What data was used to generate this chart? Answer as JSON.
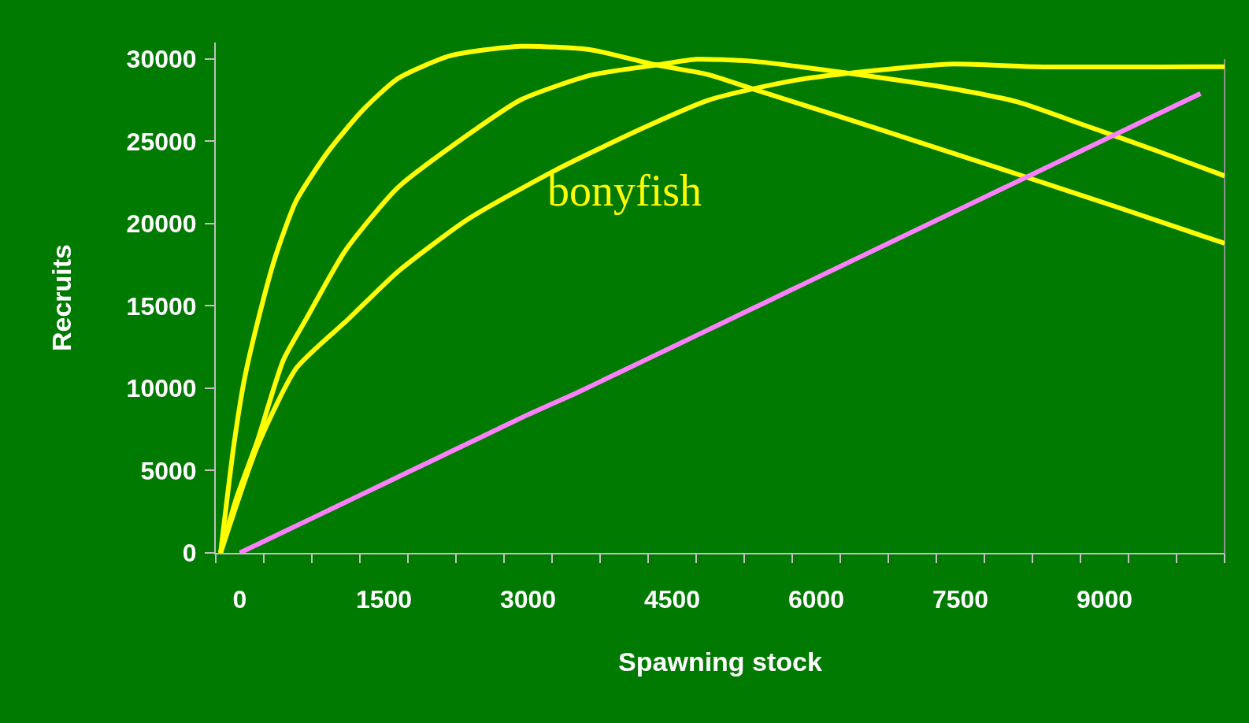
{
  "chart_data": {
    "type": "line",
    "xlabel": "Spawning stock",
    "ylabel": "Recruits",
    "annotations": [
      "bonyfish"
    ],
    "xlim": [
      -250,
      10250
    ],
    "xticks": [
      0,
      1500,
      3000,
      4500,
      6000,
      7500,
      9000,
      {
        "value": -250,
        "label": null
      },
      {
        "value": 250,
        "label": null
      },
      {
        "value": 750,
        "label": null
      },
      {
        "value": 1250,
        "label": null
      },
      {
        "value": 1750,
        "label": null
      },
      {
        "value": 2250,
        "label": null
      },
      {
        "value": 2750,
        "label": null
      },
      {
        "value": 3250,
        "label": null
      },
      {
        "value": 3750,
        "label": null
      },
      {
        "value": 4250,
        "label": null
      },
      {
        "value": 4750,
        "label": null
      },
      {
        "value": 5250,
        "label": null
      },
      {
        "value": 5750,
        "label": null
      },
      {
        "value": 6250,
        "label": null
      },
      {
        "value": 6750,
        "label": null
      },
      {
        "value": 7250,
        "label": null
      },
      {
        "value": 7750,
        "label": null
      },
      {
        "value": 8250,
        "label": null
      },
      {
        "value": 8750,
        "label": null
      },
      {
        "value": 9250,
        "label": null
      },
      {
        "value": 9750,
        "label": null
      },
      {
        "value": 10250,
        "label": null
      }
    ],
    "ylim": [
      0,
      31000
    ],
    "yticks": [
      0,
      5000,
      10000,
      15000,
      20000,
      25000,
      30000
    ],
    "grid": false,
    "marker": "none",
    "line_style": "solid",
    "series": [
      {
        "color": "#ffff00",
        "x": [
          -200,
          -64,
          45,
          182,
          367,
          585,
          912,
          1281,
          1645,
          2193,
          2924,
          3654,
          4308,
          4873,
          5331,
          6663,
          8095,
          9169,
          10250
        ],
        "values": [
          0,
          6460,
          10460,
          13950,
          17930,
          21360,
          24320,
          26900,
          28810,
          30200,
          30770,
          30560,
          29670,
          29060,
          28200,
          25720,
          23000,
          20930,
          18800
        ]
      },
      {
        "color": "#ffff00",
        "x": [
          -200,
          -37,
          182,
          454,
          700,
          1097,
          1645,
          2375,
          2924,
          3654,
          4382,
          4750,
          5331,
          6306,
          7377,
          8095,
          8809,
          9527,
          10250
        ],
        "values": [
          0,
          3300,
          6780,
          11720,
          14300,
          18350,
          22190,
          25400,
          27520,
          29020,
          29670,
          29980,
          29870,
          29160,
          28240,
          27390,
          25940,
          24460,
          22900
        ]
      },
      {
        "color": "#ffff00",
        "x": [
          -200,
          182,
          591,
          1130,
          1645,
          2375,
          3289,
          4202,
          4873,
          5331,
          5945,
          7377,
          8274,
          10250
        ],
        "values": [
          0,
          6460,
          11240,
          14200,
          17080,
          20270,
          23260,
          25820,
          27490,
          28170,
          28860,
          29690,
          29530,
          29530
        ]
      },
      {
        "color": "#ff80ff",
        "x": [
          0,
          500,
          1000,
          1500,
          2000,
          2500,
          3000,
          3500,
          4000,
          4500,
          5000,
          5500,
          6000,
          6500,
          7000,
          7500,
          8000,
          8500,
          9000,
          9500,
          10000
        ],
        "values": [
          0,
          1400,
          2800,
          4200,
          5600,
          7000,
          8400,
          9700,
          11100,
          12500,
          13900,
          15300,
          16700,
          18100,
          19500,
          20900,
          22300,
          23700,
          25100,
          26500,
          27900
        ]
      }
    ]
  }
}
